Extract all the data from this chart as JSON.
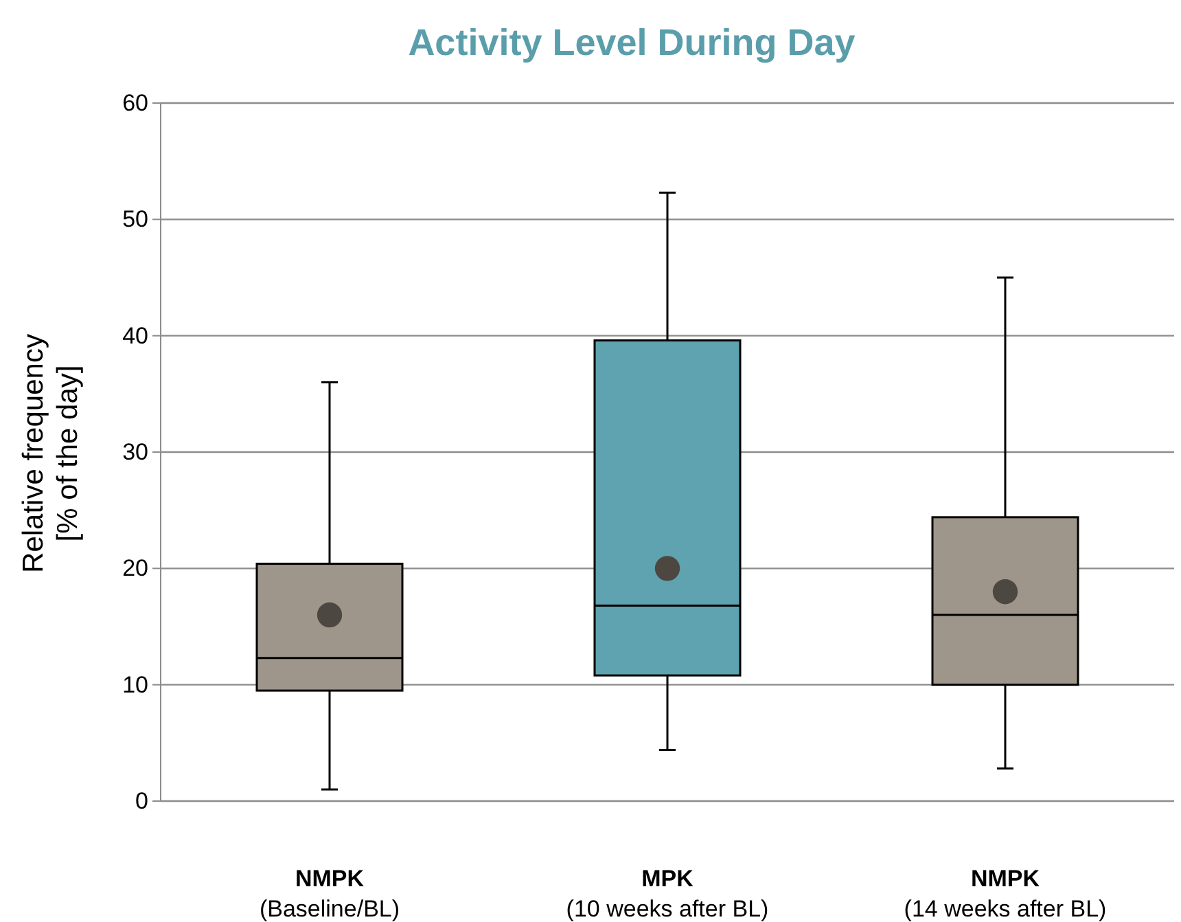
{
  "chart_data": {
    "type": "box",
    "title": "Activity Level During Day",
    "ylabel": "Relative frequency\n[% of the day]",
    "categories": [
      "NMPK\n(Baseline/BL)",
      "MPK\n(10 weeks after BL)",
      "NMPK\n(14 weeks after BL)"
    ],
    "boxes": [
      {
        "low": 1,
        "q1": 9.5,
        "median": 12.3,
        "q3": 20.4,
        "high": 36,
        "mean": 16
      },
      {
        "low": 4.4,
        "q1": 10.8,
        "median": 16.8,
        "q3": 39.6,
        "high": 52.3,
        "mean": 20
      },
      {
        "low": 2.8,
        "q1": 10,
        "median": 16,
        "q3": 24.4,
        "high": 45,
        "mean": 18
      }
    ],
    "colors": [
      "#9e968a",
      "#5fa3b0",
      "#9e968a"
    ],
    "ylim": [
      0,
      60
    ],
    "yticks": [
      0,
      10,
      20,
      30,
      40,
      50,
      60
    ],
    "grid": "y",
    "marker": "circle"
  }
}
